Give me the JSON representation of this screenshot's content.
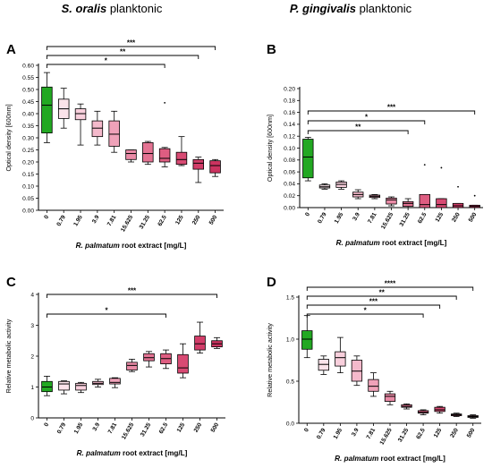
{
  "titles": {
    "left": {
      "italic": "S. oralis",
      "plain": " planktonic"
    },
    "right": {
      "italic": "P. gingivalis",
      "plain": " planktonic"
    }
  },
  "colors": {
    "control": "#22a822",
    "pinks": [
      "#fbe3ea",
      "#f8cfdc",
      "#f4b9cb",
      "#efa2b9",
      "#e98aa6",
      "#e47393",
      "#de5d81",
      "#d84a73",
      "#d23d69",
      "#cc3360"
    ]
  },
  "chart_data": [
    {
      "panel": "A",
      "type": "box",
      "x_label_italic": "R. palmatum",
      "x_label_rest": " root extract [mg/L]",
      "ylabel": "Optical density [600nm]",
      "categories": [
        "0",
        "0.79",
        "1.95",
        "3.9",
        "7.81",
        "15.625",
        "31.25",
        "62.5",
        "125",
        "250",
        "500"
      ],
      "ylim": [
        0,
        0.6
      ],
      "yticks": [
        "0.00",
        "0.05",
        "0.10",
        "0.15",
        "0.20",
        "0.25",
        "0.30",
        "0.35",
        "0.40",
        "0.45",
        "0.50",
        "0.55",
        "0.60"
      ],
      "boxes": [
        {
          "min": 0.28,
          "q1": 0.32,
          "median": 0.435,
          "q3": 0.51,
          "max": 0.57
        },
        {
          "min": 0.34,
          "q1": 0.38,
          "median": 0.42,
          "q3": 0.46,
          "max": 0.505
        },
        {
          "min": 0.27,
          "q1": 0.375,
          "median": 0.4,
          "q3": 0.42,
          "max": 0.44
        },
        {
          "min": 0.27,
          "q1": 0.305,
          "median": 0.34,
          "q3": 0.37,
          "max": 0.41
        },
        {
          "min": 0.24,
          "q1": 0.265,
          "median": 0.315,
          "q3": 0.37,
          "max": 0.41
        },
        {
          "min": 0.2,
          "q1": 0.21,
          "median": 0.235,
          "q3": 0.25,
          "max": 0.25
        },
        {
          "min": 0.19,
          "q1": 0.2,
          "median": 0.235,
          "q3": 0.28,
          "max": 0.285
        },
        {
          "min": 0.18,
          "q1": 0.2,
          "median": 0.215,
          "q3": 0.255,
          "max": 0.26
        },
        {
          "min": 0.185,
          "q1": 0.19,
          "median": 0.21,
          "q3": 0.24,
          "max": 0.305
        },
        {
          "min": 0.115,
          "q1": 0.17,
          "median": 0.195,
          "q3": 0.21,
          "max": 0.22
        },
        {
          "min": 0.14,
          "q1": 0.155,
          "median": 0.185,
          "q3": 0.205,
          "max": 0.21
        }
      ],
      "outliers": [
        {
          "category": "62.5",
          "value": 0.445
        }
      ],
      "significance": [
        {
          "from": "0",
          "to": "62.5",
          "label": "*"
        },
        {
          "from": "0",
          "to": "250",
          "label": "**"
        },
        {
          "from": "0",
          "to": "500",
          "label": "***"
        }
      ]
    },
    {
      "panel": "B",
      "type": "box",
      "x_label_italic": "R. palmatum",
      "x_label_rest": " root extract [mg/L]",
      "ylabel": "Optical density [600nm]",
      "categories": [
        "0",
        "0.79",
        "1.95",
        "3.9",
        "7.81",
        "15.625",
        "31.25",
        "62.5",
        "125",
        "250",
        "500"
      ],
      "ylim": [
        0,
        0.2
      ],
      "yticks": [
        "0.00",
        "0.02",
        "0.04",
        "0.06",
        "0.08",
        "0.10",
        "0.12",
        "0.14",
        "0.16",
        "0.18",
        "0.20"
      ],
      "boxes": [
        {
          "min": 0.045,
          "q1": 0.05,
          "median": 0.085,
          "q3": 0.115,
          "max": 0.118
        },
        {
          "min": 0.031,
          "q1": 0.033,
          "median": 0.035,
          "q3": 0.038,
          "max": 0.04
        },
        {
          "min": 0.031,
          "q1": 0.034,
          "median": 0.039,
          "q3": 0.043,
          "max": 0.045
        },
        {
          "min": 0.015,
          "q1": 0.018,
          "median": 0.022,
          "q3": 0.026,
          "max": 0.03
        },
        {
          "min": 0.015,
          "q1": 0.017,
          "median": 0.019,
          "q3": 0.021,
          "max": 0.022
        },
        {
          "min": 0.003,
          "q1": 0.006,
          "median": 0.013,
          "q3": 0.016,
          "max": 0.018
        },
        {
          "min": 0.0,
          "q1": 0.002,
          "median": 0.007,
          "q3": 0.01,
          "max": 0.015
        },
        {
          "min": 0.0,
          "q1": 0.0,
          "median": 0.005,
          "q3": 0.022,
          "max": 0.022
        },
        {
          "min": 0.0,
          "q1": 0.0,
          "median": 0.005,
          "q3": 0.015,
          "max": 0.015
        },
        {
          "min": 0.0,
          "q1": 0.0,
          "median": 0.003,
          "q3": 0.007,
          "max": 0.007
        },
        {
          "min": 0.0,
          "q1": 0.0,
          "median": 0.002,
          "q3": 0.004,
          "max": 0.004
        }
      ],
      "outliers": [
        {
          "category": "62.5",
          "value": 0.072
        },
        {
          "category": "125",
          "value": 0.067
        },
        {
          "category": "250",
          "value": 0.035
        },
        {
          "category": "500",
          "value": 0.02
        }
      ],
      "significance": [
        {
          "from": "0",
          "to": "31.25",
          "label": "**"
        },
        {
          "from": "0",
          "to": "62.5",
          "label": "*"
        },
        {
          "from": "0",
          "to": "500",
          "label": "***"
        }
      ]
    },
    {
      "panel": "C",
      "type": "box",
      "x_label_italic": "R. palmatum",
      "x_label_rest": " root extract [mg/L]",
      "ylabel": "Relative metabolic activity",
      "categories": [
        "0",
        "0.79",
        "1.95",
        "3.9",
        "7.81",
        "15.625",
        "31.25",
        "62.5",
        "125",
        "250",
        "500"
      ],
      "ylim": [
        0,
        4
      ],
      "yticks": [
        "0",
        "1",
        "2",
        "3",
        "4"
      ],
      "boxes": [
        {
          "min": 0.72,
          "q1": 0.85,
          "median": 1.0,
          "q3": 1.18,
          "max": 1.35
        },
        {
          "min": 0.78,
          "q1": 0.9,
          "median": 1.1,
          "q3": 1.18,
          "max": 1.2
        },
        {
          "min": 0.82,
          "q1": 0.9,
          "median": 1.05,
          "q3": 1.12,
          "max": 1.15
        },
        {
          "min": 1.0,
          "q1": 1.08,
          "median": 1.12,
          "q3": 1.18,
          "max": 1.25
        },
        {
          "min": 0.98,
          "q1": 1.1,
          "median": 1.15,
          "q3": 1.28,
          "max": 1.3
        },
        {
          "min": 1.5,
          "q1": 1.55,
          "median": 1.7,
          "q3": 1.8,
          "max": 1.9
        },
        {
          "min": 1.65,
          "q1": 1.85,
          "median": 1.95,
          "q3": 2.08,
          "max": 2.15
        },
        {
          "min": 1.6,
          "q1": 1.75,
          "median": 1.92,
          "q3": 2.08,
          "max": 2.2
        },
        {
          "min": 1.3,
          "q1": 1.45,
          "median": 1.62,
          "q3": 2.05,
          "max": 2.4
        },
        {
          "min": 2.1,
          "q1": 2.2,
          "median": 2.4,
          "q3": 2.65,
          "max": 3.1
        },
        {
          "min": 2.25,
          "q1": 2.3,
          "median": 2.4,
          "q3": 2.5,
          "max": 2.6
        }
      ],
      "outliers": [],
      "significance": [
        {
          "from": "0",
          "to": "62.5",
          "label": "*"
        },
        {
          "from": "0",
          "to": "500",
          "label": "***"
        }
      ]
    },
    {
      "panel": "D",
      "type": "box",
      "x_label_italic": "R. palmatum",
      "x_label_rest": " root extract [mg/L]",
      "ylabel": "Relative metabolic activity",
      "categories": [
        "0",
        "0.79",
        "1.95",
        "3.9",
        "7.81",
        "15.625",
        "31.25",
        "62.5",
        "125",
        "250",
        "500"
      ],
      "ylim": [
        0,
        1.5
      ],
      "yticks": [
        "0.0",
        "0.5",
        "1.0",
        "1.5"
      ],
      "boxes": [
        {
          "min": 0.78,
          "q1": 0.88,
          "median": 1.0,
          "q3": 1.1,
          "max": 1.28
        },
        {
          "min": 0.58,
          "q1": 0.63,
          "median": 0.7,
          "q3": 0.76,
          "max": 0.8
        },
        {
          "min": 0.6,
          "q1": 0.68,
          "median": 0.78,
          "q3": 0.85,
          "max": 1.02
        },
        {
          "min": 0.45,
          "q1": 0.5,
          "median": 0.62,
          "q3": 0.75,
          "max": 0.8
        },
        {
          "min": 0.32,
          "q1": 0.38,
          "median": 0.44,
          "q3": 0.52,
          "max": 0.6
        },
        {
          "min": 0.22,
          "q1": 0.26,
          "median": 0.32,
          "q3": 0.35,
          "max": 0.38
        },
        {
          "min": 0.17,
          "q1": 0.19,
          "median": 0.2,
          "q3": 0.22,
          "max": 0.23
        },
        {
          "min": 0.1,
          "q1": 0.12,
          "median": 0.13,
          "q3": 0.15,
          "max": 0.16
        },
        {
          "min": 0.12,
          "q1": 0.14,
          "median": 0.16,
          "q3": 0.19,
          "max": 0.2
        },
        {
          "min": 0.08,
          "q1": 0.09,
          "median": 0.1,
          "q3": 0.11,
          "max": 0.12
        },
        {
          "min": 0.06,
          "q1": 0.07,
          "median": 0.08,
          "q3": 0.09,
          "max": 0.1
        }
      ],
      "outliers": [],
      "significance": [
        {
          "from": "0",
          "to": "62.5",
          "label": "*"
        },
        {
          "from": "0",
          "to": "125",
          "label": "***"
        },
        {
          "from": "0",
          "to": "250",
          "label": "**"
        },
        {
          "from": "0",
          "to": "500",
          "label": "****"
        }
      ]
    }
  ]
}
